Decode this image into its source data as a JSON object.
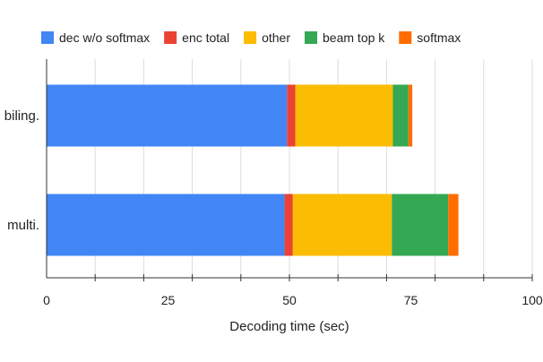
{
  "chart_data": {
    "type": "bar",
    "orientation": "horizontal",
    "stacked": true,
    "title": "",
    "xlabel": "Decoding time (sec)",
    "ylabel": "",
    "xlim": [
      0,
      100
    ],
    "x_ticks": [
      "0",
      "25",
      "50",
      "75",
      "100"
    ],
    "grid": true,
    "legend_position": "top",
    "categories": [
      "biling.",
      "multi."
    ],
    "series": [
      {
        "name": "dec w/o softmax",
        "color": "#4285f4",
        "values": [
          49.5,
          49
        ]
      },
      {
        "name": "enc total",
        "color": "#ea4335",
        "values": [
          1.7,
          1.7
        ]
      },
      {
        "name": "other",
        "color": "#fbbc04",
        "values": [
          20.1,
          20.4
        ]
      },
      {
        "name": "beam top k",
        "color": "#34a853",
        "values": [
          3.2,
          11.6
        ]
      },
      {
        "name": "softmax",
        "color": "#ff6d01",
        "values": [
          0.8,
          2.1
        ]
      }
    ]
  }
}
